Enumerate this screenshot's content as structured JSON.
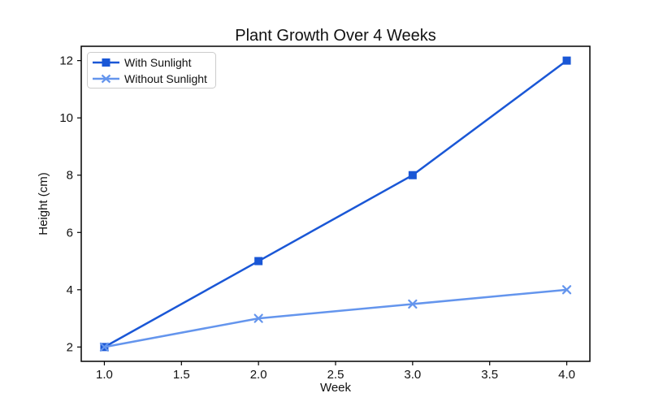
{
  "figure": {
    "background": "#ffffff",
    "frame_color": "#000000"
  },
  "chart_data": {
    "type": "line",
    "title": "Plant Growth Over 4 Weeks",
    "xlabel": "Week",
    "ylabel": "Height (cm)",
    "x": [
      1.0,
      2.0,
      3.0,
      4.0
    ],
    "series": [
      {
        "name": "With Sunlight",
        "values": [
          2,
          5,
          8,
          12
        ],
        "color": "#1a57d6",
        "marker": "square",
        "line_width": 2.5
      },
      {
        "name": "Without Sunlight",
        "values": [
          2,
          3,
          3.5,
          4
        ],
        "color": "#6495ed",
        "marker": "x",
        "line_width": 2.5
      }
    ],
    "xlim": [
      0.85,
      4.15
    ],
    "ylim": [
      1.5,
      12.5
    ],
    "xticks": [
      1.0,
      1.5,
      2.0,
      2.5,
      3.0,
      3.5,
      4.0
    ],
    "xtick_labels": [
      "1.0",
      "1.5",
      "2.0",
      "2.5",
      "3.0",
      "3.5",
      "4.0"
    ],
    "yticks": [
      2,
      4,
      6,
      8,
      10,
      12
    ],
    "ytick_labels": [
      "2",
      "4",
      "6",
      "8",
      "10",
      "12"
    ],
    "grid": false,
    "legend": {
      "position": "upper-left",
      "background": "#ffffff",
      "border_color": "#cccccc"
    }
  }
}
